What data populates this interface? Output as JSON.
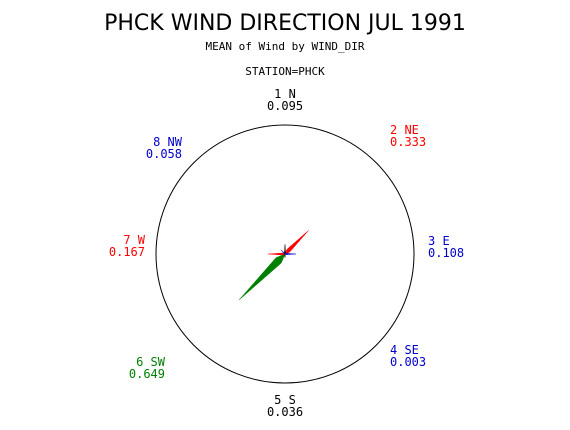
{
  "title": "PHCK WIND DIRECTION JUL 1991",
  "subtitle": "MEAN of Wind by WIND_DIR",
  "station": "STATION=PHCK",
  "colors": {
    "red": "#ff0000",
    "blue": "#0000cc",
    "green": "#008000",
    "black": "#000000"
  },
  "chart_data": {
    "type": "radar",
    "title": "PHCK WIND DIRECTION JUL 1991",
    "subtitle": "MEAN of Wind by WIND_DIR",
    "group": "STATION=PHCK",
    "directions": [
      {
        "label": "1 N",
        "value": "0.095",
        "num": 0.095,
        "color": "#000000"
      },
      {
        "label": "2 NE",
        "value": "0.333",
        "num": 0.333,
        "color": "#ff0000"
      },
      {
        "label": "3 E",
        "value": "0.108",
        "num": 0.108,
        "color": "#0000cc"
      },
      {
        "label": "4 SE",
        "value": "0.003",
        "num": 0.003,
        "color": "#0000cc"
      },
      {
        "label": "5 S",
        "value": "0.036",
        "num": 0.036,
        "color": "#000000"
      },
      {
        "label": "6 SW",
        "value": "0.649",
        "num": 0.649,
        "color": "#008000"
      },
      {
        "label": "7 W",
        "value": "0.167",
        "num": 0.167,
        "color": "#ff0000"
      },
      {
        "label": "8 NW",
        "value": "0.058",
        "num": 0.058,
        "color": "#0000cc"
      }
    ]
  }
}
